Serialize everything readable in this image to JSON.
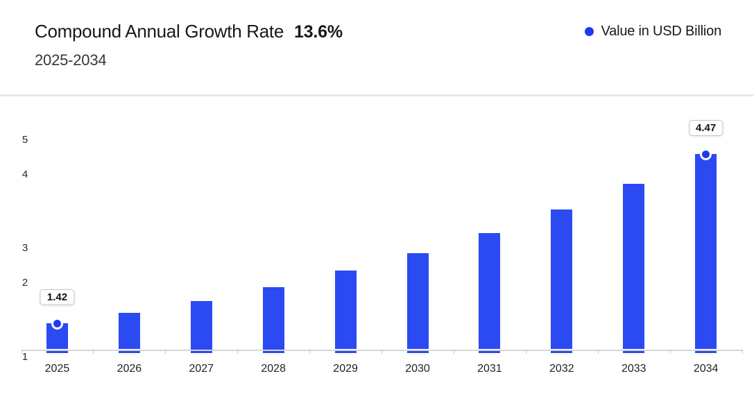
{
  "header": {
    "title": "Compound Annual Growth Rate",
    "cagr_value": "13.6%",
    "period": "2025-2034"
  },
  "legend": {
    "label": "Value in USD Billion",
    "dot_color": "#1d3af0"
  },
  "chart_data": {
    "type": "bar",
    "title": "Compound Annual Growth Rate 13.6%",
    "subtitle": "2025-2034",
    "unit": "USD Billion",
    "cagr_percent": 13.6,
    "categories": [
      "2025",
      "2026",
      "2027",
      "2028",
      "2029",
      "2030",
      "2031",
      "2032",
      "2033",
      "2034"
    ],
    "values": [
      1.42,
      1.61,
      1.83,
      2.08,
      2.37,
      2.69,
      3.05,
      3.47,
      3.94,
      4.47
    ],
    "data_labels": [
      {
        "category": "2025",
        "text": "1.42"
      },
      {
        "category": "2034",
        "text": "4.47"
      }
    ],
    "marker_categories": [
      "2025",
      "2034"
    ],
    "y_ticks": [
      1,
      2,
      3,
      4,
      5
    ],
    "ylim": [
      1,
      5
    ],
    "xlabel": "",
    "ylabel": "",
    "grid": false,
    "legend": "Value in USD Billion",
    "legend_position": "top-right",
    "bar_color": "#2b4af2",
    "marker_color": "#1d3af0"
  }
}
